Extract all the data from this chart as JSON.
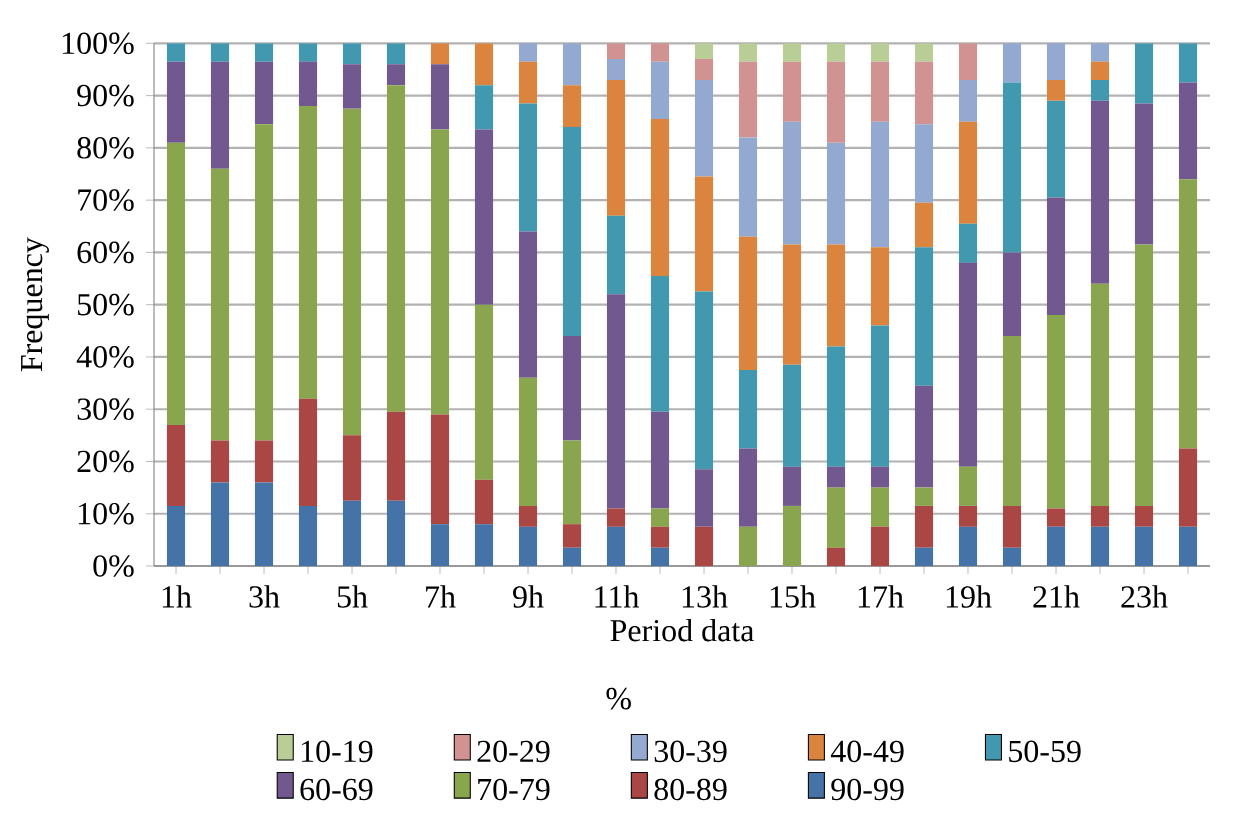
{
  "chart_data": {
    "type": "bar",
    "stacked": true,
    "xlabel": "Period data",
    "ylabel": "Frequency",
    "legend_title": "%",
    "legend": "bottom",
    "grid": "y",
    "categories": [
      "1h",
      null,
      "3h",
      null,
      "5h",
      null,
      "7h",
      null,
      "9h",
      null,
      "11h",
      null,
      "13h",
      null,
      "15h",
      null,
      "17h",
      null,
      "19h",
      null,
      "21h",
      null,
      "23h",
      null
    ],
    "ylim": [
      0,
      100
    ],
    "yticks": [
      {
        "value": 0,
        "label": "0%"
      },
      {
        "value": 10,
        "label": "10%"
      },
      {
        "value": 20,
        "label": "20%"
      },
      {
        "value": 30,
        "label": "30%"
      },
      {
        "value": 40,
        "label": "40%"
      },
      {
        "value": 50,
        "label": "50%"
      },
      {
        "value": 60,
        "label": "60%"
      },
      {
        "value": 70,
        "label": "70%"
      },
      {
        "value": 80,
        "label": "80%"
      },
      {
        "value": 90,
        "label": "90%"
      },
      {
        "value": 100,
        "label": "100%"
      }
    ],
    "series": [
      {
        "name": "90-99",
        "color": "#4572a7",
        "values": [
          11.5,
          16,
          16,
          11.5,
          12.5,
          12.5,
          8,
          8,
          7.5,
          3.5,
          7.5,
          3.5,
          0,
          0,
          0,
          0,
          0,
          3.5,
          7.5,
          3.5,
          7.5,
          7.5,
          7.5,
          7.5
        ]
      },
      {
        "name": "80-89",
        "color": "#aa4643",
        "values": [
          15.5,
          8,
          8,
          20.5,
          12.5,
          17,
          21,
          8.5,
          4,
          4.5,
          3.5,
          4,
          7.5,
          0,
          0,
          3.5,
          7.5,
          8,
          4,
          8,
          3.5,
          4,
          4,
          15
        ]
      },
      {
        "name": "70-79",
        "color": "#89a54e",
        "values": [
          54,
          52,
          60.5,
          56,
          62.5,
          62.5,
          54.5,
          33.5,
          24.5,
          16,
          0,
          3.5,
          0,
          7.5,
          11.5,
          11.5,
          7.5,
          3.5,
          7.5,
          32.5,
          37,
          42.5,
          50,
          51.5
        ]
      },
      {
        "name": "60-69",
        "color": "#71588f",
        "values": [
          15.5,
          20.5,
          12,
          8.5,
          8.5,
          4,
          12.5,
          33.5,
          28,
          20,
          41,
          18.5,
          11,
          15,
          7.5,
          4,
          4,
          19.5,
          39,
          16,
          22.5,
          35,
          27,
          18.5
        ]
      },
      {
        "name": "50-59",
        "color": "#4198af",
        "values": [
          3.5,
          3.5,
          3.5,
          3.5,
          4,
          4,
          0,
          8.5,
          24.5,
          40,
          15,
          26,
          34,
          15,
          19.5,
          23,
          27,
          26.5,
          7.5,
          32.5,
          18.5,
          4,
          11.5,
          7.5
        ]
      },
      {
        "name": "40-49",
        "color": "#db843d",
        "values": [
          0,
          0,
          0,
          0,
          0,
          0,
          4,
          8,
          8,
          8,
          26,
          30,
          22,
          25.5,
          23,
          19.5,
          15,
          8.5,
          19.5,
          0,
          4,
          3.5,
          0,
          0
        ]
      },
      {
        "name": "30-39",
        "color": "#93a9cf",
        "values": [
          0,
          0,
          0,
          0,
          0,
          0,
          0,
          0,
          3.5,
          8,
          4,
          11,
          18.5,
          19,
          23.5,
          19.5,
          24,
          15,
          8,
          7.5,
          7,
          3.5,
          0,
          0
        ]
      },
      {
        "name": "20-29",
        "color": "#d19392",
        "values": [
          0,
          0,
          0,
          0,
          0,
          0,
          0,
          0,
          0,
          0,
          3,
          3.5,
          4,
          14.5,
          11.5,
          15.5,
          11.5,
          12,
          7,
          0,
          0,
          0,
          0,
          0
        ]
      },
      {
        "name": "10-19",
        "color": "#b9cd96",
        "values": [
          0,
          0,
          0,
          0,
          0,
          0,
          0,
          0,
          0,
          0,
          0,
          0,
          3,
          3.5,
          3.5,
          3.5,
          3.5,
          3.5,
          0,
          0,
          0,
          0,
          0,
          0
        ]
      }
    ]
  }
}
